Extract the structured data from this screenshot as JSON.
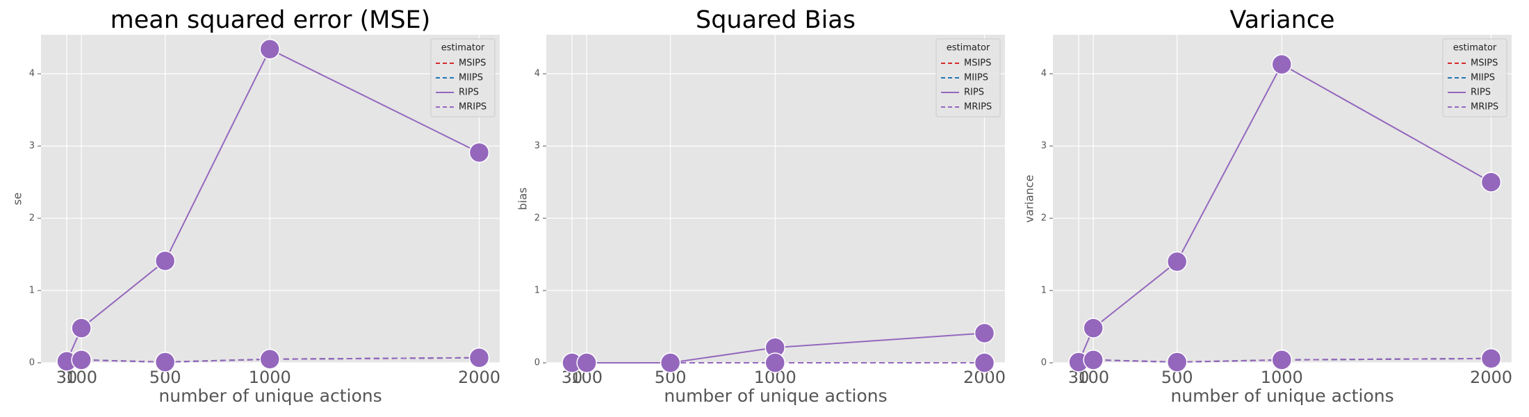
{
  "chart_data": [
    {
      "type": "line",
      "title": "mean squared error (MSE)",
      "x_label": "number of unique actions",
      "y_label": "se",
      "x": [
        30,
        100,
        500,
        1000,
        2000
      ],
      "xlim": [
        -93,
        2098
      ],
      "xticks": [
        30,
        100,
        500,
        1000,
        2000
      ],
      "ylim": [
        0,
        4.54
      ],
      "yticks": [
        0,
        1,
        2,
        3,
        4
      ],
      "grid": true,
      "legend_title": "estimator",
      "legend_position": "upper-right",
      "marker_color": "#9467bd",
      "series": [
        {
          "name": "MSIPS",
          "color": "#d62728",
          "dash": true,
          "values": [
            0.02,
            0.04,
            0.01,
            0.05,
            0.07
          ]
        },
        {
          "name": "MIIPS",
          "color": "#1f77b4",
          "dash": true,
          "values": [
            0.02,
            0.04,
            0.01,
            0.05,
            0.07
          ]
        },
        {
          "name": "RIPS",
          "color": "#9467bd",
          "dash": false,
          "values": [
            0.02,
            0.48,
            1.41,
            4.34,
            2.91
          ]
        },
        {
          "name": "MRIPS",
          "color": "#9467bd",
          "dash": true,
          "values": [
            0.02,
            0.04,
            0.01,
            0.05,
            0.07
          ]
        }
      ]
    },
    {
      "type": "line",
      "title": "Squared Bias",
      "x_label": "number of unique actions",
      "y_label": "bias",
      "x": [
        30,
        100,
        500,
        1000,
        2000
      ],
      "xlim": [
        -93,
        2098
      ],
      "xticks": [
        30,
        100,
        500,
        1000,
        2000
      ],
      "ylim": [
        0,
        4.54
      ],
      "yticks": [
        0,
        1,
        2,
        3,
        4
      ],
      "grid": true,
      "legend_title": "estimator",
      "legend_position": "upper-right",
      "marker_color": "#9467bd",
      "series": [
        {
          "name": "MSIPS",
          "color": "#d62728",
          "dash": true,
          "values": [
            0,
            0,
            0,
            0,
            0
          ]
        },
        {
          "name": "MIIPS",
          "color": "#1f77b4",
          "dash": true,
          "values": [
            0,
            0,
            0,
            0,
            0
          ]
        },
        {
          "name": "RIPS",
          "color": "#9467bd",
          "dash": false,
          "values": [
            0,
            0,
            0,
            0.21,
            0.41
          ]
        },
        {
          "name": "MRIPS",
          "color": "#9467bd",
          "dash": true,
          "values": [
            0,
            0,
            0,
            0,
            0
          ]
        }
      ]
    },
    {
      "type": "line",
      "title": "Variance",
      "x_label": "number of unique actions",
      "y_label": "variance",
      "x": [
        30,
        100,
        500,
        1000,
        2000
      ],
      "xlim": [
        -93,
        2098
      ],
      "xticks": [
        30,
        100,
        500,
        1000,
        2000
      ],
      "ylim": [
        0,
        4.54
      ],
      "yticks": [
        0,
        1,
        2,
        3,
        4
      ],
      "grid": true,
      "legend_title": "estimator",
      "legend_position": "upper-right",
      "marker_color": "#9467bd",
      "series": [
        {
          "name": "MSIPS",
          "color": "#d62728",
          "dash": true,
          "values": [
            0.01,
            0.04,
            0.01,
            0.04,
            0.06
          ]
        },
        {
          "name": "MIIPS",
          "color": "#1f77b4",
          "dash": true,
          "values": [
            0.01,
            0.04,
            0.01,
            0.04,
            0.06
          ]
        },
        {
          "name": "RIPS",
          "color": "#9467bd",
          "dash": false,
          "values": [
            0.01,
            0.48,
            1.4,
            4.13,
            2.5
          ]
        },
        {
          "name": "MRIPS",
          "color": "#9467bd",
          "dash": true,
          "values": [
            0.01,
            0.04,
            0.01,
            0.04,
            0.06
          ]
        }
      ]
    }
  ]
}
